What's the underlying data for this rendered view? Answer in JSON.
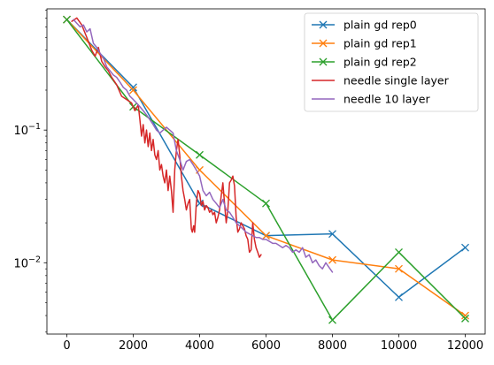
{
  "chart_data": {
    "type": "line",
    "title": "",
    "xlabel": "",
    "ylabel": "",
    "xlim": [
      -600,
      12600
    ],
    "ylim": [
      0.0029,
      0.82
    ],
    "yscale": "log",
    "grid": false,
    "legend_position": "top-right",
    "x_ticks": [
      0,
      2000,
      4000,
      6000,
      8000,
      10000,
      12000
    ],
    "x_tick_labels": [
      "0",
      "2000",
      "4000",
      "6000",
      "8000",
      "10000",
      "12000"
    ],
    "y_major_ticks": [
      0.01,
      0.1
    ],
    "y_tick_labels": [
      "10^-2",
      "10^-1"
    ],
    "y_minor_ticks": [
      0.003,
      0.004,
      0.005,
      0.006,
      0.007,
      0.008,
      0.009,
      0.02,
      0.03,
      0.04,
      0.05,
      0.06,
      0.07,
      0.08,
      0.09,
      0.2,
      0.3,
      0.4,
      0.5,
      0.6,
      0.7,
      0.8
    ],
    "series": [
      {
        "name": "plain gd rep0",
        "color": "#1f77b4",
        "marker": "x",
        "points": [
          [
            0,
            0.68
          ],
          [
            2000,
            0.21
          ],
          [
            4000,
            0.028
          ],
          [
            6000,
            0.016
          ],
          [
            8000,
            0.0165
          ],
          [
            10000,
            0.0055
          ],
          [
            12000,
            0.013
          ]
        ]
      },
      {
        "name": "plain gd rep1",
        "color": "#ff7f0e",
        "marker": "x",
        "points": [
          [
            0,
            0.68
          ],
          [
            2000,
            0.2
          ],
          [
            4000,
            0.05
          ],
          [
            6000,
            0.016
          ],
          [
            8000,
            0.0105
          ],
          [
            10000,
            0.009
          ],
          [
            12000,
            0.004
          ]
        ]
      },
      {
        "name": "plain gd rep2",
        "color": "#2ca02c",
        "marker": "x",
        "points": [
          [
            0,
            0.68
          ],
          [
            2000,
            0.15
          ],
          [
            4000,
            0.065
          ],
          [
            6000,
            0.028
          ],
          [
            8000,
            0.0037
          ],
          [
            10000,
            0.012
          ],
          [
            12000,
            0.0038
          ]
        ]
      },
      {
        "name": "needle single layer",
        "color": "#d62728",
        "marker": "",
        "points": [
          [
            150,
            0.66
          ],
          [
            300,
            0.7
          ],
          [
            450,
            0.62
          ],
          [
            600,
            0.5
          ],
          [
            750,
            0.4
          ],
          [
            850,
            0.36
          ],
          [
            950,
            0.42
          ],
          [
            1050,
            0.33
          ],
          [
            1150,
            0.3
          ],
          [
            1250,
            0.28
          ],
          [
            1350,
            0.25
          ],
          [
            1500,
            0.22
          ],
          [
            1650,
            0.18
          ],
          [
            1800,
            0.17
          ],
          [
            1950,
            0.16
          ],
          [
            2050,
            0.14
          ],
          [
            2150,
            0.155
          ],
          [
            2200,
            0.12
          ],
          [
            2250,
            0.09
          ],
          [
            2300,
            0.11
          ],
          [
            2350,
            0.08
          ],
          [
            2400,
            0.1
          ],
          [
            2450,
            0.075
          ],
          [
            2500,
            0.095
          ],
          [
            2550,
            0.07
          ],
          [
            2600,
            0.085
          ],
          [
            2650,
            0.065
          ],
          [
            2700,
            0.06
          ],
          [
            2750,
            0.07
          ],
          [
            2800,
            0.05
          ],
          [
            2850,
            0.055
          ],
          [
            2900,
            0.045
          ],
          [
            2950,
            0.04
          ],
          [
            3000,
            0.05
          ],
          [
            3050,
            0.035
          ],
          [
            3100,
            0.045
          ],
          [
            3150,
            0.035
          ],
          [
            3200,
            0.024
          ],
          [
            3250,
            0.05
          ],
          [
            3300,
            0.07
          ],
          [
            3350,
            0.085
          ],
          [
            3400,
            0.065
          ],
          [
            3450,
            0.045
          ],
          [
            3500,
            0.035
          ],
          [
            3550,
            0.03
          ],
          [
            3600,
            0.025
          ],
          [
            3650,
            0.028
          ],
          [
            3700,
            0.03
          ],
          [
            3750,
            0.018
          ],
          [
            3780,
            0.017
          ],
          [
            3820,
            0.019
          ],
          [
            3850,
            0.017
          ],
          [
            3900,
            0.028
          ],
          [
            3950,
            0.035
          ],
          [
            4000,
            0.033
          ],
          [
            4050,
            0.027
          ],
          [
            4100,
            0.029
          ],
          [
            4150,
            0.025
          ],
          [
            4200,
            0.027
          ],
          [
            4250,
            0.026
          ],
          [
            4300,
            0.024
          ],
          [
            4350,
            0.025
          ],
          [
            4400,
            0.023
          ],
          [
            4450,
            0.024
          ],
          [
            4500,
            0.02
          ],
          [
            4550,
            0.022
          ],
          [
            4600,
            0.025
          ],
          [
            4650,
            0.032
          ],
          [
            4700,
            0.04
          ],
          [
            4750,
            0.028
          ],
          [
            4800,
            0.02
          ],
          [
            4850,
            0.025
          ],
          [
            4900,
            0.04
          ],
          [
            4950,
            0.042
          ],
          [
            5000,
            0.045
          ],
          [
            5050,
            0.038
          ],
          [
            5100,
            0.022
          ],
          [
            5150,
            0.017
          ],
          [
            5200,
            0.018
          ],
          [
            5250,
            0.02
          ],
          [
            5300,
            0.019
          ],
          [
            5350,
            0.018
          ],
          [
            5400,
            0.016
          ],
          [
            5450,
            0.015
          ],
          [
            5500,
            0.012
          ],
          [
            5550,
            0.0125
          ],
          [
            5600,
            0.02
          ],
          [
            5650,
            0.015
          ],
          [
            5700,
            0.013
          ],
          [
            5750,
            0.012
          ],
          [
            5800,
            0.011
          ],
          [
            5850,
            0.0115
          ]
        ]
      },
      {
        "name": "needle 10 layer",
        "color": "#9467bd",
        "marker": "",
        "points": [
          [
            200,
            0.68
          ],
          [
            400,
            0.6
          ],
          [
            500,
            0.62
          ],
          [
            600,
            0.55
          ],
          [
            700,
            0.58
          ],
          [
            800,
            0.45
          ],
          [
            900,
            0.42
          ],
          [
            1000,
            0.38
          ],
          [
            1100,
            0.35
          ],
          [
            1200,
            0.3
          ],
          [
            1300,
            0.28
          ],
          [
            1400,
            0.26
          ],
          [
            1500,
            0.25
          ],
          [
            1600,
            0.23
          ],
          [
            1700,
            0.21
          ],
          [
            1800,
            0.2
          ],
          [
            1900,
            0.18
          ],
          [
            2000,
            0.17
          ],
          [
            2100,
            0.16
          ],
          [
            2200,
            0.15
          ],
          [
            2300,
            0.14
          ],
          [
            2400,
            0.13
          ],
          [
            2500,
            0.12
          ],
          [
            2600,
            0.11
          ],
          [
            2700,
            0.1
          ],
          [
            2800,
            0.095
          ],
          [
            2900,
            0.1
          ],
          [
            3000,
            0.105
          ],
          [
            3100,
            0.1
          ],
          [
            3200,
            0.095
          ],
          [
            3300,
            0.07
          ],
          [
            3400,
            0.06
          ],
          [
            3500,
            0.05
          ],
          [
            3600,
            0.058
          ],
          [
            3700,
            0.06
          ],
          [
            3800,
            0.055
          ],
          [
            3900,
            0.05
          ],
          [
            4000,
            0.045
          ],
          [
            4100,
            0.035
          ],
          [
            4200,
            0.032
          ],
          [
            4300,
            0.034
          ],
          [
            4400,
            0.03
          ],
          [
            4500,
            0.028
          ],
          [
            4600,
            0.026
          ],
          [
            4700,
            0.03
          ],
          [
            4800,
            0.025
          ],
          [
            4900,
            0.024
          ],
          [
            5000,
            0.022
          ],
          [
            5100,
            0.02
          ],
          [
            5200,
            0.019
          ],
          [
            5300,
            0.018
          ],
          [
            5400,
            0.017
          ],
          [
            5500,
            0.0165
          ],
          [
            5600,
            0.016
          ],
          [
            5700,
            0.0155
          ],
          [
            5800,
            0.0155
          ],
          [
            5900,
            0.015
          ],
          [
            6000,
            0.015
          ],
          [
            6100,
            0.0145
          ],
          [
            6200,
            0.014
          ],
          [
            6300,
            0.014
          ],
          [
            6400,
            0.0135
          ],
          [
            6500,
            0.013
          ],
          [
            6600,
            0.0135
          ],
          [
            6700,
            0.013
          ],
          [
            6800,
            0.012
          ],
          [
            6900,
            0.0125
          ],
          [
            7000,
            0.012
          ],
          [
            7100,
            0.013
          ],
          [
            7200,
            0.011
          ],
          [
            7300,
            0.0115
          ],
          [
            7400,
            0.01
          ],
          [
            7500,
            0.0105
          ],
          [
            7600,
            0.0095
          ],
          [
            7700,
            0.009
          ],
          [
            7800,
            0.01
          ],
          [
            7900,
            0.0092
          ],
          [
            8000,
            0.0085
          ]
        ]
      }
    ]
  }
}
